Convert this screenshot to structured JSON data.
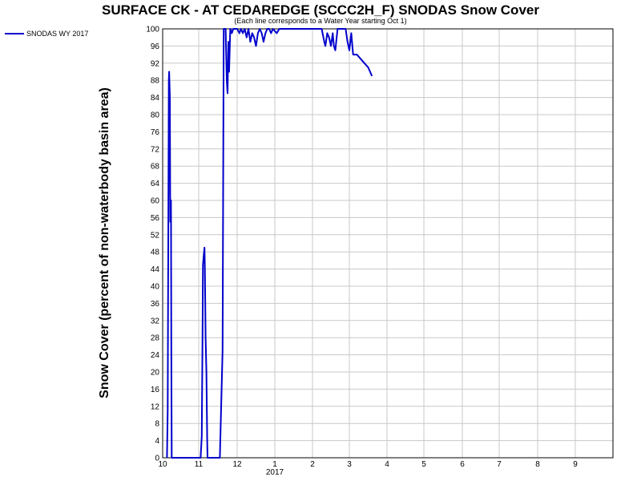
{
  "chart_data": {
    "type": "line",
    "title": "SURFACE CK - AT CEDAREDGE (SCCC2H_F) SNODAS Snow Cover",
    "subtitle": "(Each line corresponds to a Water Year starting Oct 1)",
    "xlabel": "",
    "ylabel": "Snow Cover (percent of non-waterbody basin area)",
    "ylim": [
      0,
      100
    ],
    "yticks": [
      0,
      4,
      8,
      12,
      16,
      20,
      24,
      28,
      32,
      36,
      40,
      44,
      48,
      52,
      56,
      60,
      64,
      68,
      72,
      76,
      80,
      84,
      88,
      92,
      96,
      100
    ],
    "xlim": [
      10,
      10.8
    ],
    "xticks": [
      {
        "value": 10,
        "label": "10"
      },
      {
        "value": 11,
        "label": "11"
      },
      {
        "value": 12,
        "label": "12"
      },
      {
        "value": 1,
        "label": "1"
      },
      {
        "value": 2,
        "label": "2"
      },
      {
        "value": 3,
        "label": "3"
      },
      {
        "value": 4,
        "label": "4"
      },
      {
        "value": 5,
        "label": "5"
      },
      {
        "value": 6,
        "label": "6"
      },
      {
        "value": 7,
        "label": "7"
      },
      {
        "value": 8,
        "label": "8"
      },
      {
        "value": 9,
        "label": "9"
      }
    ],
    "year_label": "2017",
    "grid": true,
    "legend": "top-left",
    "series": [
      {
        "name": "SNODAS WY 2017",
        "color": "#0000cc",
        "points": [
          [
            10.12,
            0
          ],
          [
            10.14,
            11
          ],
          [
            10.17,
            88
          ],
          [
            10.18,
            90
          ],
          [
            10.2,
            84
          ],
          [
            10.21,
            55
          ],
          [
            10.23,
            60
          ],
          [
            10.24,
            26
          ],
          [
            10.25,
            0
          ],
          [
            10.3,
            0
          ],
          [
            10.6,
            0
          ],
          [
            11.0,
            0
          ],
          [
            11.05,
            0
          ],
          [
            11.08,
            5
          ],
          [
            11.1,
            29
          ],
          [
            11.11,
            45
          ],
          [
            11.13,
            47
          ],
          [
            11.15,
            49
          ],
          [
            11.16,
            44
          ],
          [
            11.18,
            28
          ],
          [
            11.2,
            20
          ],
          [
            11.22,
            4
          ],
          [
            11.23,
            0
          ],
          [
            11.3,
            0
          ],
          [
            11.4,
            0
          ],
          [
            11.55,
            0
          ],
          [
            11.62,
            25
          ],
          [
            11.65,
            100
          ],
          [
            11.7,
            100
          ],
          [
            11.73,
            88
          ],
          [
            11.75,
            85
          ],
          [
            11.77,
            97
          ],
          [
            11.79,
            90
          ],
          [
            11.82,
            100
          ],
          [
            11.86,
            99
          ],
          [
            11.9,
            100
          ],
          [
            12.0,
            100
          ],
          [
            12.06,
            99
          ],
          [
            12.1,
            100
          ],
          [
            12.15,
            99
          ],
          [
            12.2,
            100
          ],
          [
            12.25,
            98
          ],
          [
            12.3,
            100
          ],
          [
            12.35,
            97
          ],
          [
            12.4,
            99
          ],
          [
            12.45,
            98
          ],
          [
            12.5,
            96
          ],
          [
            12.55,
            99
          ],
          [
            12.6,
            100
          ],
          [
            12.65,
            99
          ],
          [
            12.7,
            97
          ],
          [
            12.75,
            99
          ],
          [
            12.8,
            100
          ],
          [
            12.85,
            100
          ],
          [
            12.9,
            99
          ],
          [
            12.95,
            100
          ],
          [
            13.05,
            99
          ],
          [
            13.12,
            100
          ],
          [
            13.15,
            100
          ],
          [
            14.25,
            100
          ],
          [
            14.32,
            97
          ],
          [
            14.35,
            96
          ],
          [
            14.4,
            99
          ],
          [
            14.45,
            98
          ],
          [
            14.5,
            96
          ],
          [
            14.55,
            99
          ],
          [
            14.58,
            96
          ],
          [
            14.62,
            95
          ],
          [
            14.68,
            100
          ],
          [
            14.75,
            100
          ],
          [
            14.8,
            100
          ],
          [
            14.9,
            100
          ],
          [
            14.95,
            97
          ],
          [
            15.0,
            95
          ],
          [
            15.05,
            99
          ],
          [
            15.1,
            94
          ],
          [
            15.2,
            94
          ],
          [
            15.3,
            93
          ],
          [
            15.4,
            92
          ],
          [
            15.5,
            91
          ],
          [
            15.55,
            90
          ],
          [
            15.6,
            89
          ]
        ]
      }
    ]
  }
}
